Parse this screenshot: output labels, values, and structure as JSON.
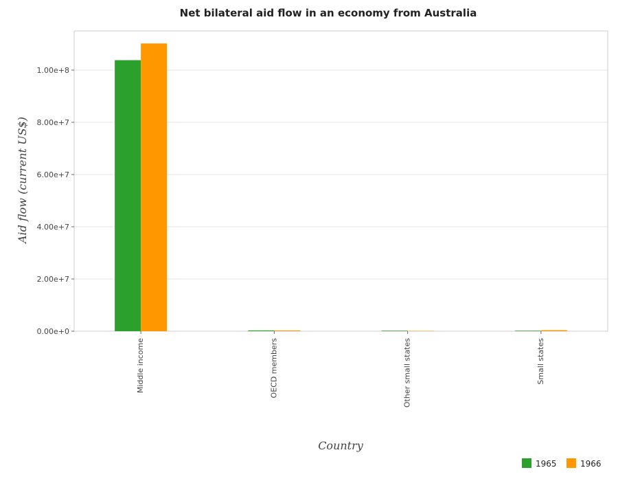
{
  "chart_data": {
    "type": "bar",
    "title": "Net bilateral aid flow in an economy from Australia",
    "xlabel": "Country",
    "ylabel": "Aid flow (current US$)",
    "categories": [
      "Middle income",
      "OECD members",
      "Other small states",
      "Small states"
    ],
    "series": [
      {
        "name": "1965",
        "color": "#2ca02c",
        "values": [
          103800000,
          300000,
          200000,
          200000
        ]
      },
      {
        "name": "1966",
        "color": "#ff9800",
        "values": [
          110200000,
          280000,
          130000,
          380000
        ]
      }
    ],
    "ylim": [
      0,
      115000000
    ],
    "yticks": [
      0,
      20000000,
      40000000,
      60000000,
      80000000,
      100000000
    ],
    "ytick_labels": [
      "0.00e+0",
      "2.00e+7",
      "4.00e+7",
      "6.00e+7",
      "8.00e+7",
      "1.00e+8"
    ],
    "grid": true,
    "legend_position": "bottom-right"
  }
}
